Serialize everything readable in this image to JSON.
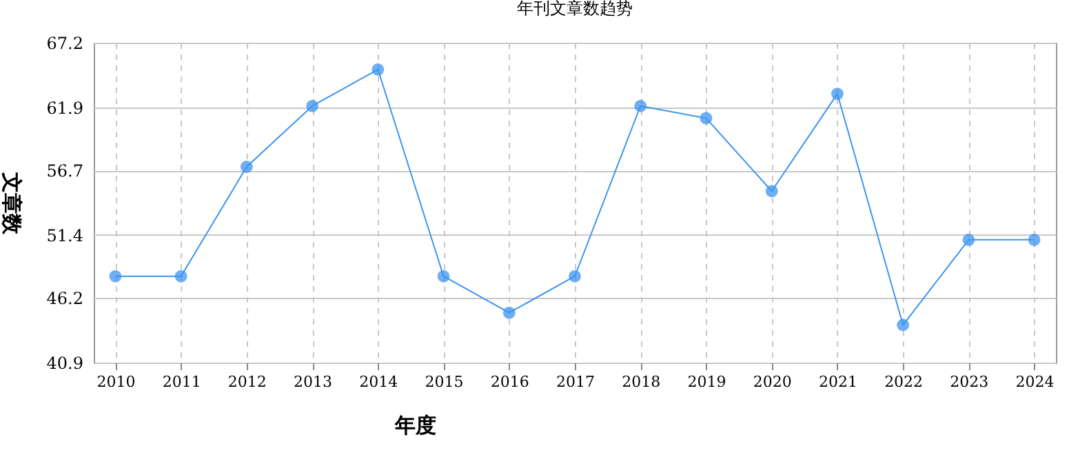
{
  "chart_data": {
    "type": "line",
    "title": "年刊文章数趋势",
    "xlabel": "年度",
    "ylabel": "文章数",
    "categories": [
      "2010",
      "2011",
      "2012",
      "2013",
      "2014",
      "2015",
      "2016",
      "2017",
      "2018",
      "2019",
      "2020",
      "2021",
      "2022",
      "2023",
      "2024"
    ],
    "series": [
      {
        "color": "#3d94f0",
        "values": [
          48,
          48,
          57,
          62,
          65,
          48,
          45,
          48,
          62,
          61,
          55,
          63,
          44,
          51,
          51
        ]
      }
    ],
    "ylim": [
      40.9,
      67.2
    ],
    "yticks": [
      40.9,
      46.2,
      51.4,
      56.7,
      61.9,
      67.2
    ],
    "grid": true,
    "marker": "circle",
    "line_style": "solid"
  }
}
